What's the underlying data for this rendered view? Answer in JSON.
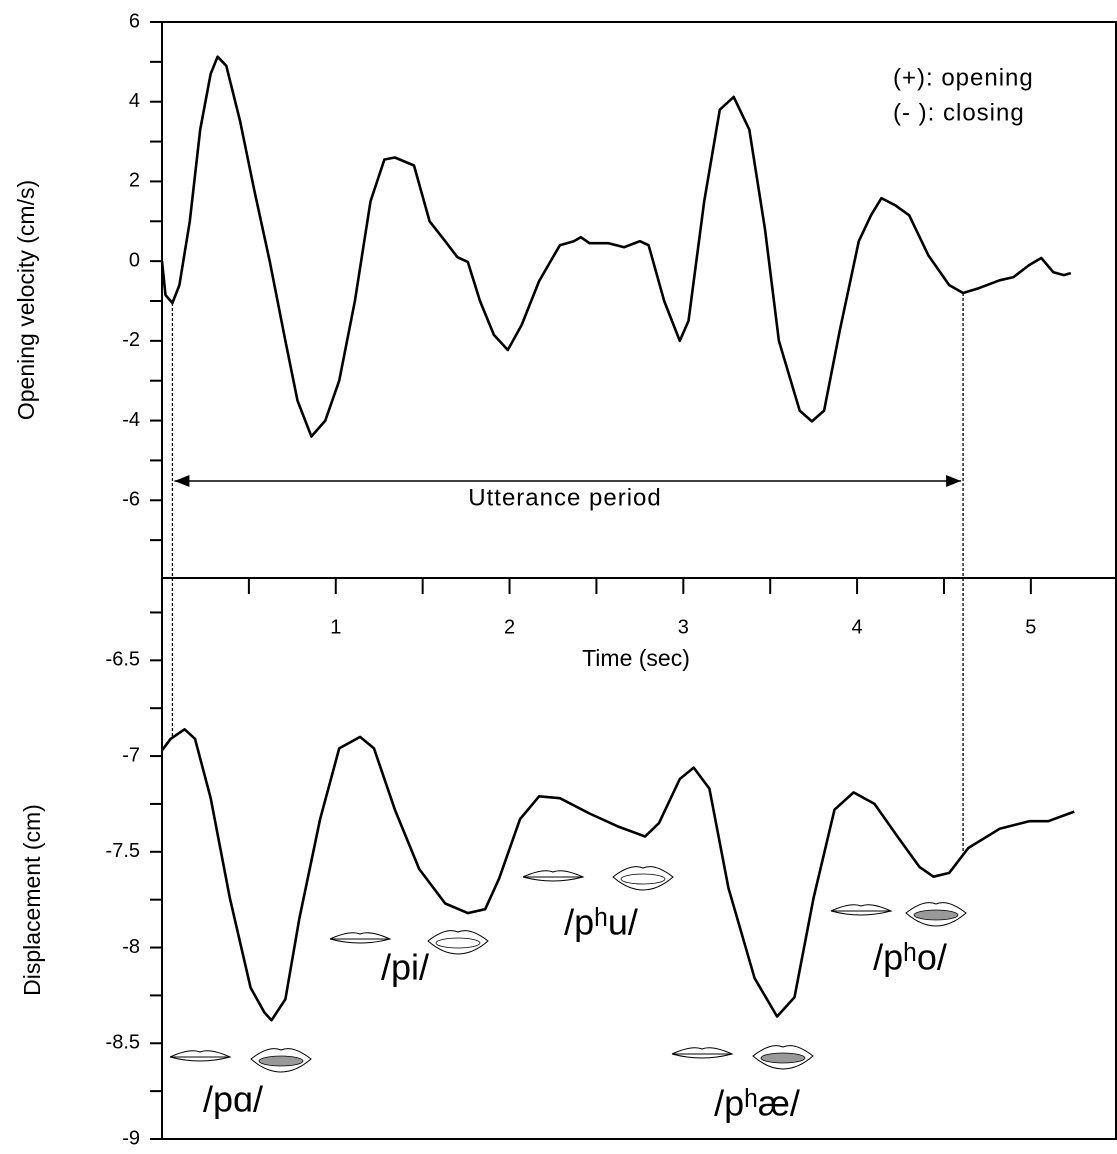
{
  "chart_data": [
    {
      "type": "line",
      "y_label": "Opening velocity (cm/s)",
      "x_label": "Time (sec)",
      "annotations": [
        "(+): opening",
        "(- ): closing"
      ],
      "utterance_label": "Utterance period",
      "utterance_period": [
        0.06,
        4.61
      ],
      "color": "#000000",
      "xlim": [
        0,
        5.49
      ],
      "ylim": [
        -7.95,
        6
      ],
      "xticks": [
        1,
        2,
        3,
        4,
        5
      ],
      "yticks": [
        -6,
        -4,
        -2,
        0,
        2,
        4,
        6
      ],
      "x": [
        0,
        0.02,
        0.06,
        0.1,
        0.16,
        0.22,
        0.28,
        0.32,
        0.37,
        0.45,
        0.53,
        0.62,
        0.71,
        0.78,
        0.86,
        0.94,
        1.02,
        1.11,
        1.2,
        1.28,
        1.34,
        1.45,
        1.54,
        1.63,
        1.7,
        1.76,
        1.83,
        1.91,
        1.99,
        2.07,
        2.17,
        2.29,
        2.37,
        2.41,
        2.46,
        2.57,
        2.66,
        2.75,
        2.8,
        2.89,
        2.98,
        3.03,
        3.12,
        3.21,
        3.29,
        3.38,
        3.47,
        3.55,
        3.67,
        3.74,
        3.81,
        3.9,
        4.01,
        4.08,
        4.14,
        4.22,
        4.3,
        4.41,
        4.53,
        4.61,
        4.7,
        4.82,
        4.9,
        4.99,
        5.06,
        5.13,
        5.19,
        5.23
      ],
      "y": [
        0,
        -0.85,
        -1.05,
        -0.6,
        1.0,
        3.3,
        4.7,
        5.13,
        4.9,
        3.5,
        1.8,
        0,
        -2,
        -3.5,
        -4.4,
        -4.0,
        -3.0,
        -1.0,
        1.5,
        2.55,
        2.6,
        2.4,
        1.0,
        0.5,
        0.1,
        -0.02,
        -1.0,
        -1.85,
        -2.23,
        -1.6,
        -0.5,
        0.4,
        0.5,
        0.6,
        0.45,
        0.45,
        0.35,
        0.5,
        0.4,
        -1.0,
        -2.0,
        -1.5,
        1.5,
        3.8,
        4.12,
        3.3,
        0.8,
        -2.0,
        -3.75,
        -4.02,
        -3.75,
        -1.75,
        0.5,
        1.15,
        1.58,
        1.4,
        1.15,
        0.15,
        -0.6,
        -0.8,
        -0.68,
        -0.48,
        -0.4,
        -0.1,
        0.08,
        -0.28,
        -0.35,
        -0.3
      ]
    },
    {
      "type": "line",
      "y_label": "Displacement (cm)",
      "syllables": [
        "/pɑ/",
        "/pi/",
        "/pʰu/",
        "/pʰæ/",
        "/pʰo/"
      ],
      "color": "#000000",
      "xlim": [
        0,
        5.49
      ],
      "ylim": [
        -9,
        -6.07
      ],
      "yticks": [
        -9,
        -8.5,
        -8,
        -7.5,
        -7,
        -6.5
      ],
      "x": [
        0,
        0.05,
        0.13,
        0.19,
        0.28,
        0.39,
        0.51,
        0.59,
        0.63,
        0.71,
        0.79,
        0.91,
        1.02,
        1.14,
        1.22,
        1.34,
        1.48,
        1.63,
        1.76,
        1.86,
        1.94,
        2.06,
        2.17,
        2.29,
        2.46,
        2.63,
        2.78,
        2.86,
        2.98,
        3.06,
        3.15,
        3.26,
        3.41,
        3.54,
        3.64,
        3.75,
        3.87,
        3.98,
        4.1,
        4.24,
        4.36,
        4.44,
        4.53,
        4.64,
        4.82,
        4.99,
        5.1,
        5.25
      ],
      "y": [
        -6.97,
        -6.91,
        -6.86,
        -6.91,
        -7.22,
        -7.74,
        -8.21,
        -8.34,
        -8.38,
        -8.27,
        -7.85,
        -7.33,
        -6.96,
        -6.9,
        -6.96,
        -7.28,
        -7.59,
        -7.77,
        -7.82,
        -7.8,
        -7.64,
        -7.33,
        -7.21,
        -7.22,
        -7.3,
        -7.37,
        -7.42,
        -7.35,
        -7.12,
        -7.06,
        -7.17,
        -7.69,
        -8.16,
        -8.36,
        -8.26,
        -7.74,
        -7.28,
        -7.19,
        -7.25,
        -7.43,
        -7.58,
        -7.63,
        -7.61,
        -7.48,
        -7.38,
        -7.34,
        -7.34,
        -7.29
      ]
    }
  ]
}
